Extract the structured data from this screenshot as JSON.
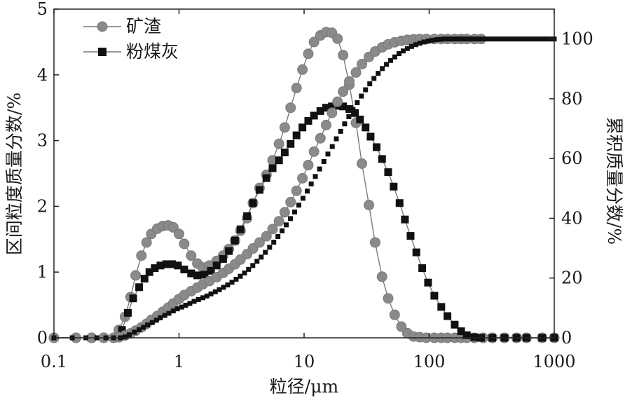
{
  "chart_data": {
    "type": "line",
    "xlabel": "粒径/μm",
    "ylabel_left": "区间粒度质量分数/%",
    "ylabel_right": "累积质量分数/%",
    "x_scale": "log",
    "xlim": [
      0.1,
      1000
    ],
    "ylim_left": [
      0,
      5
    ],
    "ylim_right": [
      0,
      110
    ],
    "x_ticks": [
      "0.1",
      "1",
      "10",
      "100",
      "1000"
    ],
    "y_ticks_left": [
      "0",
      "1",
      "2",
      "3",
      "4",
      "5"
    ],
    "y_ticks_right": [
      "0",
      "20",
      "40",
      "60",
      "80",
      "100"
    ],
    "grid": false,
    "legend_position": "top-left",
    "series": [
      {
        "name": "矿渣",
        "marker": "circle",
        "axis": "left",
        "kind": "interval",
        "points": [
          [
            0.1,
            0
          ],
          [
            0.15,
            0
          ],
          [
            0.2,
            0
          ],
          [
            0.25,
            0
          ],
          [
            0.3,
            0
          ],
          [
            0.33,
            0.12
          ],
          [
            0.37,
            0.32
          ],
          [
            0.41,
            0.62
          ],
          [
            0.45,
            0.95
          ],
          [
            0.5,
            1.25
          ],
          [
            0.55,
            1.45
          ],
          [
            0.6,
            1.58
          ],
          [
            0.67,
            1.66
          ],
          [
            0.74,
            1.7
          ],
          [
            0.82,
            1.71
          ],
          [
            0.9,
            1.68
          ],
          [
            1.0,
            1.58
          ],
          [
            1.1,
            1.43
          ],
          [
            1.25,
            1.25
          ],
          [
            1.4,
            1.13
          ],
          [
            1.55,
            1.07
          ],
          [
            1.75,
            1.1
          ],
          [
            2.0,
            1.17
          ],
          [
            2.25,
            1.25
          ],
          [
            2.5,
            1.35
          ],
          [
            2.8,
            1.48
          ],
          [
            3.1,
            1.63
          ],
          [
            3.5,
            1.82
          ],
          [
            3.9,
            2.05
          ],
          [
            4.4,
            2.28
          ],
          [
            5.0,
            2.48
          ],
          [
            5.6,
            2.7
          ],
          [
            6.3,
            2.95
          ],
          [
            7.0,
            3.2
          ],
          [
            7.8,
            3.5
          ],
          [
            8.7,
            3.8
          ],
          [
            9.7,
            4.08
          ],
          [
            10.8,
            4.32
          ],
          [
            12,
            4.5
          ],
          [
            13.5,
            4.6
          ],
          [
            15,
            4.65
          ],
          [
            16.7,
            4.64
          ],
          [
            18.5,
            4.55
          ],
          [
            20.5,
            4.3
          ],
          [
            23,
            3.85
          ],
          [
            26,
            3.27
          ],
          [
            29,
            2.65
          ],
          [
            33,
            2.02
          ],
          [
            37,
            1.45
          ],
          [
            42,
            0.93
          ],
          [
            47,
            0.6
          ],
          [
            53,
            0.35
          ],
          [
            60,
            0.17
          ],
          [
            67,
            0.07
          ],
          [
            75,
            0.02
          ],
          [
            84,
            0.01
          ],
          [
            95,
            0
          ],
          [
            110,
            0
          ],
          [
            125,
            0
          ],
          [
            140,
            0
          ],
          [
            160,
            0
          ],
          [
            180,
            0
          ],
          [
            200,
            0
          ],
          [
            230,
            0
          ],
          [
            270,
            0
          ],
          [
            320,
            0
          ],
          [
            400,
            0
          ],
          [
            500,
            0
          ],
          [
            600,
            0
          ],
          [
            800,
            0
          ],
          [
            1000,
            0
          ]
        ]
      },
      {
        "name": "粉煤灰",
        "marker": "square",
        "axis": "left",
        "kind": "interval",
        "points": [
          [
            0.1,
            0
          ],
          [
            0.15,
            0
          ],
          [
            0.2,
            0
          ],
          [
            0.25,
            0
          ],
          [
            0.3,
            0
          ],
          [
            0.35,
            0.12
          ],
          [
            0.39,
            0.38
          ],
          [
            0.43,
            0.6
          ],
          [
            0.48,
            0.77
          ],
          [
            0.53,
            0.9
          ],
          [
            0.58,
            1.0
          ],
          [
            0.64,
            1.06
          ],
          [
            0.71,
            1.1
          ],
          [
            0.79,
            1.12
          ],
          [
            0.88,
            1.12
          ],
          [
            0.98,
            1.1
          ],
          [
            1.1,
            1.04
          ],
          [
            1.25,
            0.98
          ],
          [
            1.4,
            0.95
          ],
          [
            1.6,
            0.96
          ],
          [
            1.8,
            1.02
          ],
          [
            2.0,
            1.1
          ],
          [
            2.25,
            1.2
          ],
          [
            2.5,
            1.32
          ],
          [
            2.8,
            1.48
          ],
          [
            3.1,
            1.65
          ],
          [
            3.5,
            1.85
          ],
          [
            3.9,
            2.05
          ],
          [
            4.4,
            2.25
          ],
          [
            5.0,
            2.43
          ],
          [
            5.6,
            2.58
          ],
          [
            6.3,
            2.7
          ],
          [
            7.0,
            2.82
          ],
          [
            7.8,
            2.95
          ],
          [
            8.7,
            3.08
          ],
          [
            9.7,
            3.2
          ],
          [
            10.8,
            3.3
          ],
          [
            12,
            3.38
          ],
          [
            13.5,
            3.45
          ],
          [
            15,
            3.5
          ],
          [
            16.7,
            3.52
          ],
          [
            18.5,
            3.53
          ],
          [
            20.5,
            3.52
          ],
          [
            23,
            3.48
          ],
          [
            25.5,
            3.42
          ],
          [
            28,
            3.32
          ],
          [
            31,
            3.2
          ],
          [
            34,
            3.06
          ],
          [
            38,
            2.9
          ],
          [
            42,
            2.72
          ],
          [
            47,
            2.52
          ],
          [
            52,
            2.3
          ],
          [
            58,
            2.05
          ],
          [
            64,
            1.8
          ],
          [
            71,
            1.55
          ],
          [
            79,
            1.3
          ],
          [
            88,
            1.06
          ],
          [
            98,
            0.84
          ],
          [
            110,
            0.64
          ],
          [
            125,
            0.47
          ],
          [
            140,
            0.33
          ],
          [
            160,
            0.2
          ],
          [
            180,
            0.1
          ],
          [
            200,
            0.04
          ],
          [
            230,
            0.01
          ],
          [
            260,
            0
          ],
          [
            320,
            0
          ],
          [
            400,
            0
          ],
          [
            500,
            0
          ],
          [
            600,
            0
          ],
          [
            800,
            0
          ],
          [
            1000,
            0
          ]
        ]
      },
      {
        "name": "",
        "marker": "circle",
        "axis": "right",
        "kind": "cumulative",
        "points": [
          [
            0.1,
            0
          ],
          [
            0.15,
            0
          ],
          [
            0.2,
            0
          ],
          [
            0.25,
            0
          ],
          [
            0.3,
            0
          ],
          [
            0.33,
            0.2
          ],
          [
            0.37,
            0.8
          ],
          [
            0.41,
            1.5
          ],
          [
            0.45,
            2.4
          ],
          [
            0.5,
            3.5
          ],
          [
            0.55,
            4.7
          ],
          [
            0.6,
            6.0
          ],
          [
            0.67,
            7.3
          ],
          [
            0.74,
            8.7
          ],
          [
            0.82,
            10.1
          ],
          [
            0.9,
            11.5
          ],
          [
            1.0,
            13.0
          ],
          [
            1.1,
            14.3
          ],
          [
            1.25,
            15.6
          ],
          [
            1.4,
            16.8
          ],
          [
            1.55,
            17.9
          ],
          [
            1.75,
            19.0
          ],
          [
            2.0,
            20.3
          ],
          [
            2.25,
            21.7
          ],
          [
            2.5,
            23.1
          ],
          [
            2.8,
            24.6
          ],
          [
            3.1,
            26.2
          ],
          [
            3.5,
            28.0
          ],
          [
            3.9,
            29.9
          ],
          [
            4.4,
            31.9
          ],
          [
            5.0,
            34.0
          ],
          [
            5.6,
            36.4
          ],
          [
            6.3,
            39.0
          ],
          [
            7.0,
            42.0
          ],
          [
            7.8,
            45.4
          ],
          [
            8.7,
            49.2
          ],
          [
            9.7,
            53.4
          ],
          [
            10.8,
            57.8
          ],
          [
            12,
            62.3
          ],
          [
            13.5,
            66.8
          ],
          [
            15,
            71.2
          ],
          [
            16.7,
            75.3
          ],
          [
            18.5,
            79.0
          ],
          [
            20.5,
            82.4
          ],
          [
            23,
            85.8
          ],
          [
            26,
            88.8
          ],
          [
            29,
            91.6
          ],
          [
            33,
            94.0
          ],
          [
            37,
            95.8
          ],
          [
            42,
            97.2
          ],
          [
            47,
            98.2
          ],
          [
            53,
            98.9
          ],
          [
            60,
            99.4
          ],
          [
            67,
            99.7
          ],
          [
            75,
            99.9
          ],
          [
            84,
            100
          ],
          [
            95,
            100
          ],
          [
            110,
            100
          ],
          [
            125,
            100
          ],
          [
            140,
            100
          ],
          [
            160,
            100
          ],
          [
            180,
            100
          ],
          [
            200,
            100
          ],
          [
            230,
            100
          ],
          [
            260,
            100
          ]
        ]
      },
      {
        "name": "",
        "marker": "small-square",
        "axis": "right",
        "kind": "cumulative",
        "points": [
          [
            0.1,
            0
          ],
          [
            0.14,
            0
          ],
          [
            0.18,
            0
          ],
          [
            0.22,
            0
          ],
          [
            0.26,
            0
          ],
          [
            0.3,
            0
          ],
          [
            0.34,
            0
          ],
          [
            0.37,
            0.3
          ],
          [
            0.4,
            1.0
          ],
          [
            0.44,
            1.9
          ],
          [
            0.48,
            2.7
          ],
          [
            0.52,
            3.5
          ],
          [
            0.56,
            4.3
          ],
          [
            0.61,
            5.1
          ],
          [
            0.66,
            5.9
          ],
          [
            0.71,
            6.7
          ],
          [
            0.77,
            7.5
          ],
          [
            0.83,
            8.2
          ],
          [
            0.9,
            9.0
          ],
          [
            0.97,
            9.7
          ],
          [
            1.05,
            10.3
          ],
          [
            1.13,
            10.9
          ],
          [
            1.22,
            11.5
          ],
          [
            1.32,
            12.2
          ],
          [
            1.43,
            12.8
          ],
          [
            1.55,
            13.4
          ],
          [
            1.67,
            14.0
          ],
          [
            1.8,
            14.7
          ],
          [
            1.95,
            15.4
          ],
          [
            2.1,
            16.1
          ],
          [
            2.27,
            16.9
          ],
          [
            2.45,
            17.7
          ],
          [
            2.65,
            18.6
          ],
          [
            2.86,
            19.6
          ],
          [
            3.09,
            20.6
          ],
          [
            3.34,
            21.7
          ],
          [
            3.6,
            22.9
          ],
          [
            3.89,
            24.2
          ],
          [
            4.2,
            25.6
          ],
          [
            4.54,
            27.0
          ],
          [
            4.9,
            28.6
          ],
          [
            5.3,
            30.3
          ],
          [
            5.72,
            32.0
          ],
          [
            6.18,
            33.9
          ],
          [
            6.67,
            35.8
          ],
          [
            7.2,
            37.8
          ],
          [
            7.78,
            39.9
          ],
          [
            8.4,
            42.1
          ],
          [
            9.07,
            44.4
          ],
          [
            9.8,
            46.7
          ],
          [
            10.6,
            49.1
          ],
          [
            11.4,
            51.5
          ],
          [
            12.3,
            54.0
          ],
          [
            13.3,
            56.5
          ],
          [
            14.4,
            59.0
          ],
          [
            15.5,
            61.5
          ],
          [
            16.8,
            64.0
          ],
          [
            18.1,
            66.6
          ],
          [
            19.6,
            69.1
          ],
          [
            21.1,
            71.6
          ],
          [
            22.8,
            74.0
          ],
          [
            24.6,
            76.4
          ],
          [
            26.6,
            78.7
          ],
          [
            28.7,
            80.9
          ],
          [
            31,
            83.0
          ],
          [
            33.5,
            85.0
          ],
          [
            36.2,
            86.8
          ],
          [
            39.1,
            88.5
          ],
          [
            42.2,
            90.1
          ],
          [
            45.6,
            91.5
          ],
          [
            49.2,
            92.8
          ],
          [
            53.1,
            94.0
          ],
          [
            57.4,
            95.1
          ],
          [
            62,
            96.0
          ],
          [
            66.9,
            96.8
          ],
          [
            72.3,
            97.5
          ],
          [
            78.1,
            98.1
          ],
          [
            84.3,
            98.6
          ],
          [
            91,
            99.0
          ],
          [
            98.3,
            99.3
          ],
          [
            106,
            99.6
          ],
          [
            115,
            99.8
          ],
          [
            124,
            99.9
          ],
          [
            134,
            100
          ],
          [
            144,
            100
          ],
          [
            156,
            100
          ],
          [
            168,
            100
          ],
          [
            182,
            100
          ],
          [
            196,
            100
          ],
          [
            212,
            100
          ],
          [
            229,
            100
          ],
          [
            247,
            100
          ],
          [
            267,
            100
          ],
          [
            288,
            100
          ],
          [
            311,
            100
          ],
          [
            336,
            100
          ],
          [
            363,
            100
          ],
          [
            392,
            100
          ],
          [
            424,
            100
          ],
          [
            457,
            100
          ],
          [
            494,
            100
          ],
          [
            534,
            100
          ],
          [
            576,
            100
          ],
          [
            622,
            100
          ],
          [
            672,
            100
          ],
          [
            726,
            100
          ],
          [
            784,
            100
          ],
          [
            846,
            100
          ],
          [
            914,
            100
          ],
          [
            1000,
            100
          ]
        ]
      }
    ]
  }
}
